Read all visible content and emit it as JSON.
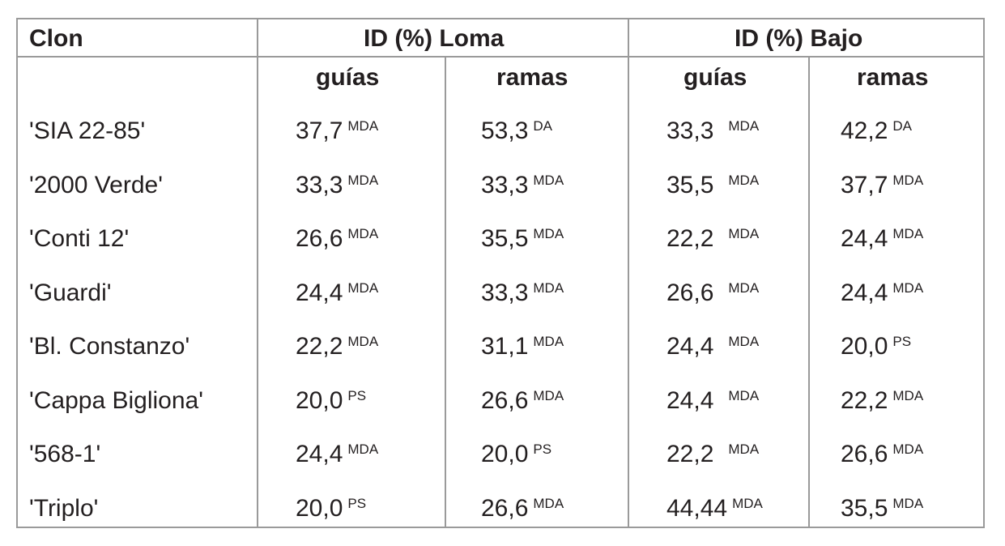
{
  "headers": {
    "clon": "Clon",
    "loma": "ID (%) Loma",
    "bajo": "ID (%) Bajo"
  },
  "subheaders": [
    "guías",
    "ramas",
    "guías",
    "ramas"
  ],
  "rows": [
    {
      "name": "'SIA 22-85'",
      "cells": [
        {
          "v": "37,7",
          "s": "MDA"
        },
        {
          "v": "53,3",
          "s": "DA"
        },
        {
          "v": "33,3",
          "s": "MDA"
        },
        {
          "v": "42,2",
          "s": "DA"
        }
      ]
    },
    {
      "name": "'2000 Verde'",
      "cells": [
        {
          "v": "33,3",
          "s": "MDA"
        },
        {
          "v": "33,3",
          "s": "MDA"
        },
        {
          "v": "35,5",
          "s": "MDA"
        },
        {
          "v": "37,7",
          "s": "MDA"
        }
      ]
    },
    {
      "name": "'Conti 12'",
      "cells": [
        {
          "v": "26,6",
          "s": "MDA"
        },
        {
          "v": "35,5",
          "s": "MDA"
        },
        {
          "v": "22,2",
          "s": "MDA"
        },
        {
          "v": "24,4",
          "s": "MDA"
        }
      ]
    },
    {
      "name": "'Guardi'",
      "cells": [
        {
          "v": "24,4",
          "s": "MDA"
        },
        {
          "v": "33,3",
          "s": "MDA"
        },
        {
          "v": "26,6",
          "s": "MDA"
        },
        {
          "v": "24,4",
          "s": "MDA"
        }
      ]
    },
    {
      "name": "'Bl. Constanzo'",
      "cells": [
        {
          "v": "22,2",
          "s": "MDA"
        },
        {
          "v": "31,1",
          "s": "MDA"
        },
        {
          "v": "24,4",
          "s": "MDA"
        },
        {
          "v": "20,0",
          "s": "PS"
        }
      ]
    },
    {
      "name": "'Cappa Bigliona'",
      "cells": [
        {
          "v": "20,0",
          "s": "PS"
        },
        {
          "v": "26,6",
          "s": "MDA"
        },
        {
          "v": "24,4",
          "s": "MDA"
        },
        {
          "v": "22,2",
          "s": "MDA"
        }
      ]
    },
    {
      "name": "'568-1'",
      "cells": [
        {
          "v": "24,4",
          "s": "MDA"
        },
        {
          "v": "20,0",
          "s": "PS"
        },
        {
          "v": "22,2",
          "s": "MDA"
        },
        {
          "v": "26,6",
          "s": "MDA"
        }
      ]
    },
    {
      "name": "'Triplo'",
      "cells": [
        {
          "v": "20,0",
          "s": "PS"
        },
        {
          "v": "26,6",
          "s": "MDA"
        },
        {
          "v": "44,44",
          "s": "MDA"
        },
        {
          "v": "35,5",
          "s": "MDA"
        }
      ]
    }
  ]
}
